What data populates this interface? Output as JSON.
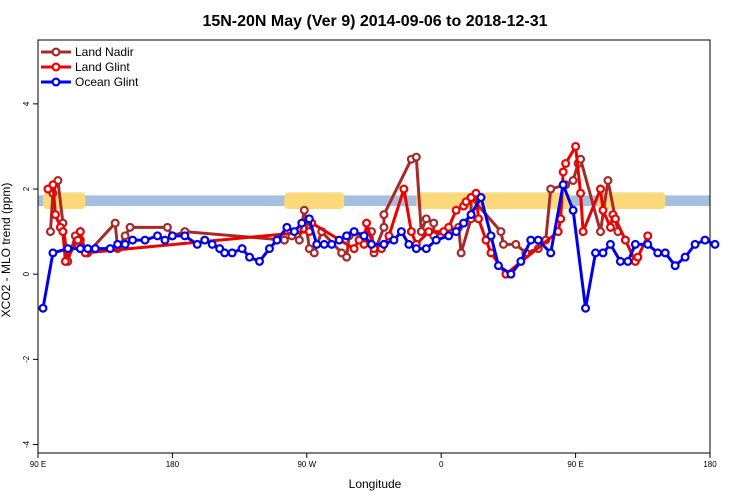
{
  "chart_data": {
    "type": "line",
    "title": "15N-20N May (Ver 9)   2014-09-06 to 2018-12-31",
    "xlabel": "Longitude",
    "ylabel": "XCO2 - MLO trend (ppm)",
    "xlim": [
      -90,
      180
    ],
    "ylim": [
      -4.2,
      5.5
    ],
    "x_ticks": [
      {
        "value": -90,
        "label": "90 E"
      },
      {
        "value": -36,
        "label": "180"
      },
      {
        "value": 18,
        "label": "90 W"
      },
      {
        "value": 72,
        "label": "0"
      },
      {
        "value": 126,
        "label": "90 E"
      },
      {
        "value": 180,
        "label": "180"
      }
    ],
    "y_ticks": [
      {
        "value": -4,
        "label": "-4"
      },
      {
        "value": -2,
        "label": "-2"
      },
      {
        "value": 0,
        "label": "0"
      },
      {
        "value": 2,
        "label": "2"
      },
      {
        "value": 4,
        "label": "4"
      }
    ],
    "legend_position": "top-left",
    "grid": false,
    "background_band": {
      "y_range": [
        1.6,
        1.85
      ],
      "color": "#a7bfdf"
    },
    "land_mask_color": "#fcda7b",
    "land_mask_ranges": [
      [
        -88,
        -71
      ],
      [
        9,
        33
      ],
      [
        62,
        124
      ],
      [
        135,
        162
      ]
    ],
    "series": [
      {
        "name": "Land Nadir",
        "color": "#a52a2a",
        "x": [
          -85,
          -84,
          -82,
          -80,
          -78,
          -75,
          -73,
          -70,
          -59,
          -58,
          -55,
          -53,
          -38,
          -36,
          -31,
          9,
          12,
          15,
          17,
          19,
          21,
          24,
          32,
          34,
          35,
          44,
          45,
          49,
          49,
          60,
          62,
          64,
          66,
          69,
          69,
          79,
          80,
          84,
          84,
          96,
          97,
          102,
          106,
          111,
          114,
          116,
          122,
          125,
          127,
          128,
          136,
          139,
          143
        ],
        "y": [
          1.0,
          1.9,
          2.2,
          1.2,
          0.3,
          0.9,
          0.8,
          0.5,
          1.2,
          0.6,
          0.9,
          1.1,
          1.1,
          0.9,
          1.0,
          0.8,
          0.9,
          0.8,
          1.5,
          0.6,
          0.5,
          1.0,
          0.5,
          0.4,
          0.9,
          1.0,
          0.5,
          1.1,
          1.4,
          2.7,
          2.75,
          1.0,
          1.3,
          1.2,
          0.9,
          1.1,
          0.5,
          1.3,
          1.8,
          1.0,
          0.7,
          0.7,
          0.5,
          0.6,
          0.8,
          2.0,
          2.1,
          2.2,
          2.6,
          2.7,
          1.0,
          2.2,
          1.0
        ]
      },
      {
        "name": "Land Glint",
        "color": "#ee0000",
        "x": [
          -86,
          -84,
          -83,
          -81,
          -80,
          -79,
          -74,
          -73,
          -71,
          19,
          20,
          37,
          39,
          41,
          42,
          45,
          48,
          51,
          57,
          60,
          62,
          67,
          73,
          75,
          78,
          81,
          82,
          84,
          86,
          87,
          90,
          92,
          98,
          119,
          120,
          121,
          122,
          126,
          128,
          129,
          136,
          137,
          140,
          141,
          142,
          146,
          150,
          151,
          155
        ],
        "y": [
          2.0,
          2.1,
          1.4,
          1.1,
          1.0,
          0.3,
          0.8,
          1.0,
          0.5,
          1.0,
          1.2,
          0.6,
          0.8,
          0.7,
          1.2,
          0.6,
          0.6,
          0.9,
          2.0,
          1.0,
          0.7,
          1.0,
          1.0,
          1.1,
          1.5,
          1.6,
          1.7,
          1.8,
          1.9,
          1.3,
          0.8,
          0.5,
          0.0,
          1.0,
          1.3,
          2.4,
          2.6,
          3.0,
          1.9,
          1.0,
          2.0,
          1.5,
          1.1,
          1.4,
          1.3,
          0.8,
          0.3,
          0.4,
          0.9
        ]
      },
      {
        "name": "Ocean Glint",
        "color": "#0000ee",
        "x": [
          -88,
          -84,
          -78,
          -73,
          -70,
          -67,
          -61,
          -58,
          -55,
          -52,
          -47,
          -42,
          -39,
          -36,
          -31,
          -26,
          -23,
          -20,
          -17,
          -15,
          -12,
          -8,
          -5,
          -1,
          3,
          6,
          10,
          13,
          16,
          19,
          22,
          25,
          28,
          31,
          34,
          37,
          41,
          44,
          49,
          53,
          56,
          59,
          62,
          66,
          70,
          75,
          78,
          81,
          84,
          88,
          92,
          95,
          100,
          104,
          108,
          111,
          116,
          121,
          125,
          130,
          134,
          137,
          140,
          144,
          147,
          150,
          155,
          159,
          162,
          166,
          170,
          174,
          178,
          182
        ],
        "y": [
          -0.8,
          0.5,
          0.6,
          0.6,
          0.6,
          0.6,
          0.6,
          0.7,
          0.7,
          0.8,
          0.8,
          0.9,
          0.8,
          0.9,
          0.9,
          0.7,
          0.8,
          0.7,
          0.6,
          0.5,
          0.5,
          0.6,
          0.4,
          0.3,
          0.6,
          0.8,
          1.1,
          1.0,
          1.2,
          1.3,
          0.7,
          0.7,
          0.7,
          0.8,
          0.9,
          1.0,
          0.9,
          0.7,
          0.7,
          0.8,
          1.0,
          0.7,
          0.6,
          0.6,
          0.8,
          0.9,
          1.0,
          1.2,
          1.4,
          1.8,
          0.9,
          0.2,
          0.0,
          0.3,
          0.8,
          0.8,
          0.5,
          2.1,
          1.5,
          -0.8,
          0.5,
          0.5,
          0.7,
          0.3,
          0.3,
          0.7,
          0.7,
          0.5,
          0.5,
          0.2,
          0.4,
          0.7,
          0.8,
          0.7
        ]
      }
    ]
  }
}
